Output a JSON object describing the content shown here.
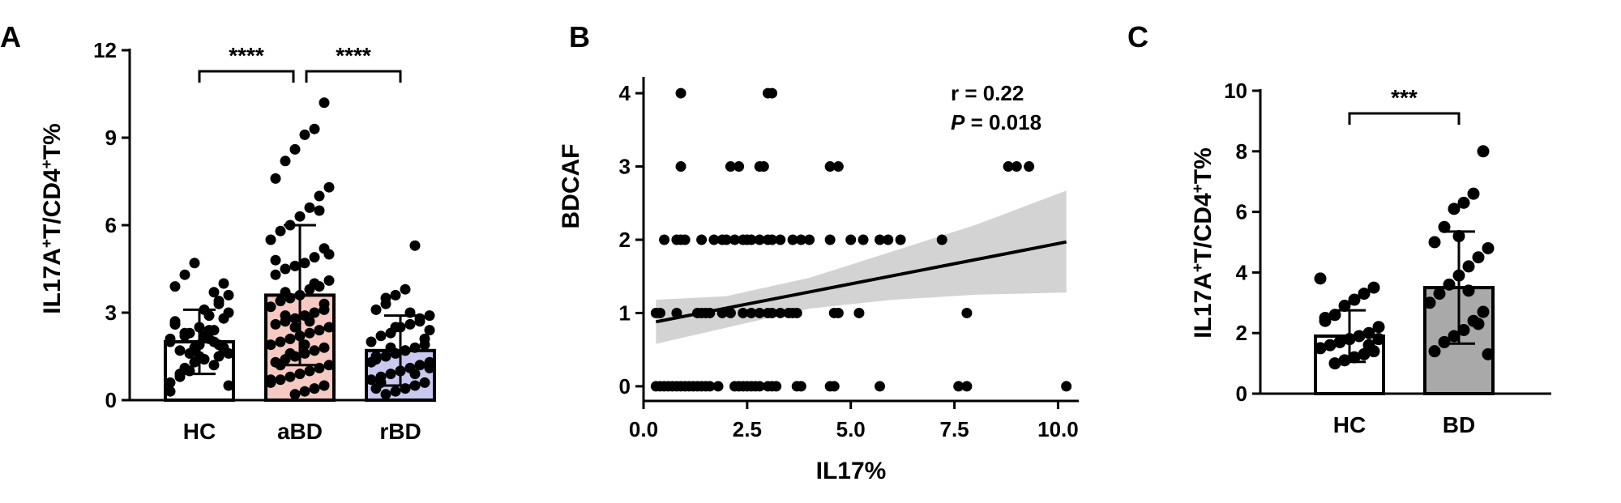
{
  "figure": {
    "panels": [
      {
        "letter": "A"
      },
      {
        "letter": "B"
      },
      {
        "letter": "C"
      }
    ]
  },
  "chart_data": [
    {
      "panel": "A",
      "type": "bar",
      "title": "",
      "xlabel": "",
      "ylabel_parts": [
        "IL17A",
        "+",
        "T/CD4",
        "+",
        "T%"
      ],
      "categories": [
        "HC",
        "aBD",
        "rBD"
      ],
      "values": [
        2.0,
        3.6,
        1.7
      ],
      "sd": [
        1.1,
        2.4,
        1.2
      ],
      "bar_colors": [
        "#ffffff",
        "#f7c9c3",
        "#c9c8ef"
      ],
      "ylim": [
        0,
        12
      ],
      "yticks": [
        "0",
        "3",
        "6",
        "9",
        "12"
      ],
      "significance": [
        {
          "from": "HC",
          "to": "aBD",
          "label": "****"
        },
        {
          "from": "aBD",
          "to": "rBD",
          "label": "****"
        }
      ],
      "points": [
        [
          2.0,
          1.7,
          2.4,
          1.4,
          1.8,
          2.2,
          2.6,
          1.6,
          1.9,
          2.1,
          1.5,
          2.3,
          1.7,
          0.3,
          2.8,
          1.2,
          3.1,
          4.7,
          4.3,
          3.9,
          3.6,
          3.3,
          2.9,
          2.5,
          1.0,
          0.9,
          0.6,
          1.8,
          2.0,
          2.2,
          1.3,
          1.1,
          2.7,
          3.0,
          3.4,
          2.4,
          1.9,
          1.6,
          0.8,
          2.1,
          4.0,
          3.7,
          1.4,
          1.7,
          2.3,
          2.6,
          0.5,
          1.5
        ],
        [
          10.2,
          9.3,
          9.1,
          8.6,
          8.2,
          7.6,
          7.3,
          7.0,
          6.6,
          6.3,
          6.0,
          5.8,
          5.5,
          5.2,
          4.9,
          4.7,
          4.6,
          4.5,
          4.3,
          4.1,
          3.9,
          3.8,
          3.6,
          3.5,
          3.4,
          3.2,
          3.1,
          3.0,
          2.9,
          2.8,
          2.7,
          2.6,
          2.5,
          2.4,
          2.3,
          2.2,
          2.1,
          2.0,
          1.9,
          1.8,
          1.7,
          1.6,
          1.5,
          1.4,
          1.3,
          1.2,
          1.1,
          1.0,
          0.9,
          0.8,
          0.7,
          0.6,
          0.5,
          0.4,
          0.3,
          0.2,
          3.7,
          4.8,
          5.0,
          6.5,
          2.7,
          2.2,
          1.6,
          1.2,
          0.7,
          3.3,
          4.0,
          1.9,
          2.5,
          2.9
        ],
        [
          5.3,
          3.8,
          3.6,
          3.3,
          3.1,
          2.9,
          2.8,
          2.6,
          2.5,
          2.3,
          2.2,
          2.0,
          1.9,
          1.8,
          1.7,
          1.6,
          1.5,
          1.4,
          1.3,
          1.2,
          1.1,
          1.0,
          0.9,
          0.8,
          0.7,
          0.6,
          0.5,
          0.4,
          0.3,
          0.2,
          1.5,
          2.4,
          2.7,
          3.0,
          1.0,
          1.8,
          0.6,
          1.3,
          2.1,
          0.9,
          1.7,
          2.5,
          3.5,
          0.4,
          1.1
        ]
      ]
    },
    {
      "panel": "B",
      "type": "scatter",
      "title": "",
      "xlabel": "IL17%",
      "ylabel": "BDCAF",
      "xlim": [
        0,
        10.5
      ],
      "ylim": [
        -0.2,
        4.2
      ],
      "xticks": [
        "0.0",
        "2.5",
        "5.0",
        "7.5",
        "10.0"
      ],
      "yticks": [
        "0",
        "1",
        "2",
        "3",
        "4"
      ],
      "r_label": "r = 0.22",
      "p_letter": "P",
      "p_value": " = 0.018",
      "fit_line": {
        "x": [
          0.3,
          10.2
        ],
        "y": [
          0.88,
          1.97
        ]
      },
      "ci_band": {
        "x": [
          0.3,
          2.0,
          4.0,
          6.0,
          8.0,
          10.2
        ],
        "upper": [
          1.18,
          1.23,
          1.48,
          1.84,
          2.2,
          2.67
        ],
        "lower": [
          0.58,
          0.8,
          1.06,
          1.18,
          1.25,
          1.28
        ]
      },
      "x": [
        0.3,
        0.4,
        0.5,
        0.6,
        0.7,
        0.8,
        0.9,
        1.0,
        1.1,
        1.2,
        1.3,
        1.4,
        1.5,
        1.6,
        1.8,
        2.2,
        2.3,
        2.4,
        2.5,
        2.6,
        2.7,
        2.8,
        3.0,
        3.1,
        3.2,
        3.7,
        3.8,
        4.5,
        4.6,
        5.7,
        7.6,
        7.8,
        10.2,
        0.3,
        0.4,
        0.8,
        1.3,
        1.4,
        1.5,
        1.6,
        1.9,
        2.1,
        2.4,
        2.6,
        2.8,
        3.0,
        3.1,
        3.3,
        3.5,
        3.6,
        3.7,
        4.6,
        4.7,
        5.2,
        7.8,
        0.5,
        0.8,
        0.9,
        1.0,
        1.4,
        1.7,
        1.9,
        2.0,
        2.2,
        2.4,
        2.5,
        2.6,
        2.8,
        3.0,
        3.1,
        3.3,
        3.6,
        3.8,
        4.0,
        4.5,
        5.0,
        5.3,
        5.7,
        5.9,
        6.2,
        7.2,
        0.9,
        2.1,
        2.3,
        2.8,
        2.9,
        4.5,
        4.7,
        8.8,
        9.0,
        9.3,
        0.9,
        3.0,
        3.1
      ],
      "y": [
        0,
        0,
        0,
        0,
        0,
        0,
        0,
        0,
        0,
        0,
        0,
        0,
        0,
        0,
        0,
        0,
        0,
        0,
        0,
        0,
        0,
        0,
        0,
        0,
        0,
        0,
        0,
        0,
        0,
        0,
        0,
        0,
        0,
        1,
        1,
        1,
        1,
        1,
        1,
        1,
        1,
        1,
        1,
        1,
        1,
        1,
        1,
        1,
        1,
        1,
        1,
        1,
        1,
        1,
        1,
        2,
        2,
        2,
        2,
        2,
        2,
        2,
        2,
        2,
        2,
        2,
        2,
        2,
        2,
        2,
        2,
        2,
        2,
        2,
        2,
        2,
        2,
        2,
        2,
        2,
        2,
        3,
        3,
        3,
        3,
        3,
        3,
        3,
        3,
        3,
        3,
        4,
        4,
        4
      ]
    },
    {
      "panel": "C",
      "type": "bar",
      "title": "",
      "xlabel": "",
      "ylabel_parts": [
        "IL17A",
        "+",
        "T/CD4",
        "+",
        "T%"
      ],
      "categories": [
        "HC",
        "BD"
      ],
      "values": [
        1.9,
        3.5
      ],
      "sd": [
        0.85,
        1.85
      ],
      "bar_colors": [
        "#ffffff",
        "#a9a9a9"
      ],
      "ylim": [
        0,
        10
      ],
      "yticks": [
        "0",
        "2",
        "4",
        "6",
        "8",
        "10"
      ],
      "significance": [
        {
          "from": "HC",
          "to": "BD",
          "label": "***"
        }
      ],
      "points": [
        [
          3.8,
          3.5,
          3.3,
          3.1,
          2.9,
          2.6,
          2.4,
          2.2,
          2.0,
          1.9,
          1.8,
          1.7,
          1.6,
          1.5,
          1.4,
          1.3,
          1.2,
          1.1,
          1.0,
          2.5,
          1.8,
          1.6
        ],
        [
          8.0,
          6.6,
          6.3,
          6.1,
          5.5,
          5.0,
          4.8,
          4.5,
          4.2,
          3.9,
          3.6,
          3.3,
          3.0,
          2.7,
          2.4,
          2.1,
          1.9,
          1.7,
          1.4,
          1.3,
          2.3,
          3.4,
          5.2
        ]
      ]
    }
  ]
}
